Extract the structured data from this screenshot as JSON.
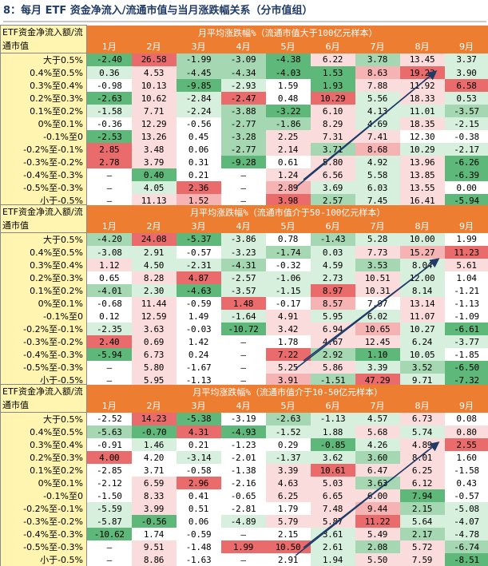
{
  "title": "8：每月 ETF 资金净流入/流通市值与当月涨跌幅关系（分市值组）",
  "months": [
    "1月",
    "2月",
    "3月",
    "4月",
    "5月",
    "6月",
    "7月",
    "8月",
    "9月"
  ],
  "rows": [
    "大于0.5%",
    "0.4%至0.5%",
    "0.3%至0.4%",
    "0.2%至0.3%",
    "0.1%至0.2%",
    "0%至0.1%",
    "-0.1%至0",
    "-0.2%至-0.1%",
    "-0.3%至-0.2%",
    "-0.4%至-0.3%",
    "-0.5%至-0.3%",
    "小于-0.5%"
  ],
  "colors": {
    "strong_red": "#ea6b6b",
    "mid_red": "#f5b3b3",
    "light_red": "#fbdcdc",
    "strong_green": "#5db87a",
    "mid_green": "#a5d8b2",
    "light_green": "#d7efdd",
    "neutral": "#ffffff",
    "header": "#ed7d31",
    "row_label": "#fff5b0"
  },
  "tables": [
    {
      "corner": "ETF资金净流入额/流通市值",
      "header": "月平均涨跌幅%（流通市值大于100亿元样本）",
      "values": [
        [
          "-2.40",
          "26.58",
          "-1.99",
          "-3.09",
          "-4.38",
          "6.22",
          "3.78",
          "13.45",
          "3.37"
        ],
        [
          "0.36",
          "4.53",
          "-4.45",
          "-4.34",
          "-4.03",
          "1.53",
          "8.63",
          "19.23",
          "3.90"
        ],
        [
          "-0.98",
          "10.13",
          "-9.85",
          "-2.93",
          "1.59",
          "1.93",
          "7.88",
          "11.92",
          "6.58"
        ],
        [
          "-2.63",
          "10.62",
          "-2.84",
          "-2.47",
          "0.48",
          "10.29",
          "5.56",
          "18.33",
          "0.53"
        ],
        [
          "-1.58",
          "7.71",
          "-2.24",
          "-3.88",
          "-3.22",
          "6.10",
          "4.13",
          "11.01",
          "-3.57"
        ],
        [
          "-0.36",
          "12.29",
          "-0.56",
          "-2.77",
          "-1.86",
          "8.29",
          "4.69",
          "18.35",
          "-2.15"
        ],
        [
          "-2.53",
          "13.26",
          "0.45",
          "-3.28",
          "2.25",
          "7.31",
          "7.41",
          "12.30",
          "-0.38"
        ],
        [
          "2.85",
          "3.48",
          "0.06",
          "-2.77",
          "2.14",
          "3.71",
          "8.68",
          "10.29",
          "-2.17"
        ],
        [
          "2.78",
          "3.79",
          "0.31",
          "-9.28",
          "0.61",
          "5.80",
          "4.92",
          "13.96",
          "-6.26"
        ],
        [
          "–",
          "0.40",
          "0.21",
          "–",
          "1.24",
          "6.56",
          "5.58",
          "13.85",
          "-6.39"
        ],
        [
          "–",
          "4.05",
          "2.36",
          "–",
          "2.89",
          "3.69",
          "6.03",
          "13.55",
          "0.00"
        ],
        [
          "–",
          "11.13",
          "1.52",
          "–",
          "3.98",
          "2.57",
          "7.45",
          "16.41",
          "-5.94"
        ]
      ],
      "tones": [
        [
          "g3",
          "r3",
          "g2",
          "g2",
          "g3",
          "r1",
          "g2",
          "r1",
          "g1"
        ],
        [
          "g1",
          "r1",
          "g2",
          "g2",
          "g3",
          "g3",
          "r2",
          "r3",
          "g1"
        ],
        [
          "n",
          "r1",
          "g3",
          "g1",
          "n",
          "g3",
          "r1",
          "r1",
          "r3"
        ],
        [
          "g3",
          "r1",
          "g1",
          "r3",
          "n",
          "r3",
          "g1",
          "r1",
          "g1"
        ],
        [
          "g1",
          "r1",
          "g1",
          "g2",
          "g3",
          "r1",
          "g1",
          "g1",
          "g2"
        ],
        [
          "n",
          "r1",
          "n",
          "g2",
          "g2",
          "r1",
          "g1",
          "r1",
          "g1"
        ],
        [
          "g3",
          "r1",
          "n",
          "g2",
          "r1",
          "r1",
          "r1",
          "n",
          "n"
        ],
        [
          "r3",
          "r1",
          "n",
          "g2",
          "r1",
          "g2",
          "r2",
          "g1",
          "g1"
        ],
        [
          "r3",
          "r1",
          "n",
          "g3",
          "n",
          "r1",
          "g1",
          "r1",
          "g3"
        ],
        [
          "n",
          "g3",
          "n",
          "n",
          "r1",
          "r1",
          "g1",
          "r1",
          "g3"
        ],
        [
          "n",
          "g1",
          "r3",
          "n",
          "r2",
          "g1",
          "g1",
          "r1",
          "n"
        ],
        [
          "n",
          "r1",
          "r2",
          "n",
          "r3",
          "g2",
          "g1",
          "r1",
          "g3"
        ]
      ]
    },
    {
      "corner": "ETF资金净流入额/流通市值",
      "header": "月平均涨跌幅%（流通市值介于50-100亿元样本）",
      "values": [
        [
          "-4.20",
          "24.08",
          "-5.37",
          "-3.86",
          "0.78",
          "-1.43",
          "5.28",
          "10.00",
          "1.99"
        ],
        [
          "-3.08",
          "2.91",
          "-0.57",
          "-3.23",
          "-1.74",
          "0.03",
          "7.73",
          "15.27",
          "11.23"
        ],
        [
          "1.12",
          "4.50",
          "-2.31",
          "-4.31",
          "-0.32",
          "4.59",
          "3.53",
          "8.04",
          "5.61"
        ],
        [
          "0.65",
          "8.28",
          "4.87",
          "-2.57",
          "-1.06",
          "2.73",
          "10.51",
          "12.00",
          "1.04"
        ],
        [
          "-4.01",
          "2.30",
          "-4.63",
          "-3.57",
          "-1.15",
          "8.97",
          "10.31",
          "8.14",
          "-1.21"
        ],
        [
          "-0.68",
          "11.44",
          "-0.59",
          "1.48",
          "-0.17",
          "8.57",
          "7.97",
          "13.14",
          "-1.13"
        ],
        [
          "0.12",
          "12.59",
          "1.49",
          "-1.64",
          "4.91",
          "5.95",
          "6.02",
          "11.07",
          "-1.09"
        ],
        [
          "-2.35",
          "3.63",
          "-0.03",
          "-10.72",
          "3.42",
          "6.94",
          "10.65",
          "10.27",
          "-6.61"
        ],
        [
          "2.40",
          "0.69",
          "1.42",
          "–",
          "1.78",
          "4.67",
          "12.45",
          "6.24",
          "-3.77"
        ],
        [
          "-5.94",
          "6.73",
          "0.24",
          "–",
          "7.22",
          "2.92",
          "1.10",
          "10.05",
          "-1.85"
        ],
        [
          "–",
          "5.80",
          "-1.67",
          "–",
          "5.25",
          "5.86",
          "3.39",
          "3.52",
          "-6.50"
        ],
        [
          "–",
          "5.95",
          "-1.13",
          "–",
          "3.91",
          "-1.51",
          "47.29",
          "9.71",
          "-7.32"
        ]
      ],
      "tones": [
        [
          "g2",
          "r3",
          "g3",
          "g1",
          "n",
          "g2",
          "g1",
          "g1",
          "n"
        ],
        [
          "g1",
          "g1",
          "n",
          "g1",
          "g2",
          "g1",
          "r1",
          "r2",
          "r3"
        ],
        [
          "r1",
          "g1",
          "g1",
          "g2",
          "n",
          "g1",
          "g2",
          "g1",
          "r1"
        ],
        [
          "n",
          "r1",
          "r3",
          "g1",
          "g1",
          "g1",
          "r1",
          "g1",
          "n"
        ],
        [
          "g2",
          "g1",
          "g3",
          "g1",
          "g1",
          "r3",
          "r1",
          "g1",
          "n"
        ],
        [
          "n",
          "r1",
          "n",
          "r3",
          "n",
          "r2",
          "n",
          "r1",
          "n"
        ],
        [
          "n",
          "r1",
          "n",
          "g1",
          "r1",
          "g1",
          "g1",
          "r1",
          "n"
        ],
        [
          "g1",
          "r1",
          "n",
          "g3",
          "r1",
          "r1",
          "r2",
          "g1",
          "g3"
        ],
        [
          "r3",
          "r1",
          "n",
          "n",
          "n",
          "r1",
          "r1",
          "g1",
          "g1"
        ],
        [
          "g3",
          "r1",
          "n",
          "n",
          "r3",
          "g2",
          "g3",
          "g1",
          "n"
        ],
        [
          "n",
          "r1",
          "n",
          "n",
          "r1",
          "r1",
          "g1",
          "g2",
          "g3"
        ],
        [
          "n",
          "r1",
          "n",
          "n",
          "r2",
          "g2",
          "r3",
          "g1",
          "g3"
        ]
      ]
    },
    {
      "corner": "ETF资金净流入额/流通市值",
      "header": "月平均涨跌幅%（流通市值介于10-50亿元样本）",
      "values": [
        [
          "-2.52",
          "14.23",
          "-5.38",
          "-3.19",
          "-2.63",
          "-1.13",
          "4.57",
          "6.73",
          "0.08"
        ],
        [
          "-5.63",
          "-0.70",
          "4.31",
          "-4.93",
          "-1.52",
          "1.88",
          "5.68",
          "5.74",
          "0.80"
        ],
        [
          "-0.91",
          "1.46",
          "0.21",
          "-1.23",
          "0.29",
          "-0.85",
          "4.26",
          "4.89",
          "2.55"
        ],
        [
          "4.00",
          "4.20",
          "-3.14",
          "-2.01",
          "-1.37",
          "3.62",
          "3.60",
          "8.01",
          "1.60"
        ],
        [
          "-2.85",
          "3.71",
          "-0.58",
          "-1.38",
          "3.39",
          "10.61",
          "6.47",
          "6.25",
          "-1.58"
        ],
        [
          "-2.12",
          "6.59",
          "2.96",
          "-2.16",
          "4.63",
          "5.03",
          "3.63",
          "6.12",
          "0.43"
        ],
        [
          "-1.50",
          "8.33",
          "0.41",
          "-0.65",
          "6.25",
          "6.65",
          "6.00",
          "7.94",
          "-0.57"
        ],
        [
          "-5.59",
          "3.99",
          "0.51",
          "-2.81",
          "1.79",
          "7.48",
          "9.44",
          "2.15",
          "-5.08"
        ],
        [
          "-5.87",
          "-0.56",
          "0.06",
          "-4.89",
          "5.79",
          "5.87",
          "11.22",
          "5.64",
          "-4.07"
        ],
        [
          "-10.62",
          "1.74",
          "-0.59",
          "–",
          "2.15",
          "3.61",
          "5.49",
          "2.17",
          "-4.78"
        ],
        [
          "–",
          "9.51",
          "-1.48",
          "1.99",
          "10.50",
          "2.61",
          "2.08",
          "5.72",
          "-6.74"
        ],
        [
          "–",
          "8.86",
          "-1.63",
          "–",
          "2.91",
          "1.94",
          "5.50",
          "7.59",
          "-8.51"
        ]
      ],
      "tones": [
        [
          "n",
          "r3",
          "g3",
          "n",
          "g2",
          "g1",
          "g1",
          "r1",
          "n"
        ],
        [
          "g2",
          "g3",
          "r3",
          "g3",
          "g1",
          "g1",
          "r1",
          "g1",
          "r1"
        ],
        [
          "n",
          "g1",
          "n",
          "n",
          "n",
          "g3",
          "g1",
          "r1",
          "r3"
        ],
        [
          "r3",
          "n",
          "g1",
          "n",
          "g1",
          "g1",
          "g2",
          "r1",
          "n"
        ],
        [
          "n",
          "n",
          "n",
          "n",
          "r1",
          "r3",
          "r1",
          "r1",
          "n"
        ],
        [
          "n",
          "r1",
          "r3",
          "n",
          "r1",
          "r1",
          "g2",
          "r1",
          "n"
        ],
        [
          "n",
          "r1",
          "n",
          "n",
          "r1",
          "r1",
          "r1",
          "g3",
          "n"
        ],
        [
          "g1",
          "r1",
          "n",
          "n",
          "n",
          "r1",
          "r2",
          "g2",
          "g1"
        ],
        [
          "g1",
          "g3",
          "n",
          "g1",
          "r1",
          "r1",
          "r3",
          "g1",
          "g1"
        ],
        [
          "g3",
          "n",
          "n",
          "n",
          "n",
          "g1",
          "r1",
          "g2",
          "g1"
        ],
        [
          "n",
          "r1",
          "n",
          "r3",
          "r3",
          "g1",
          "g2",
          "r1",
          "g2"
        ],
        [
          "n",
          "r1",
          "n",
          "n",
          "n",
          "g1",
          "r1",
          "r1",
          "g3"
        ]
      ]
    }
  ]
}
